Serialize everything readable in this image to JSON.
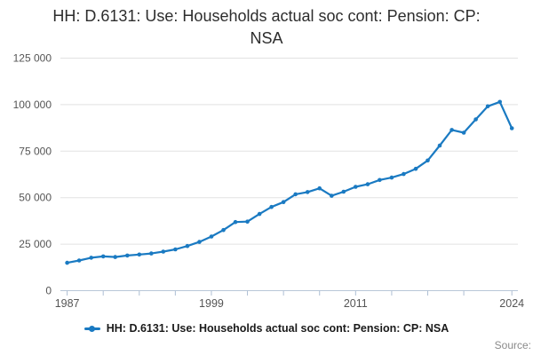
{
  "page": {
    "title": "HH: D.6131: Use: Households actual soc cont: Pension: CP: NSA",
    "source_label": "Source:"
  },
  "legend": {
    "label": "HH: D.6131: Use: Households actual soc cont: Pension: CP: NSA"
  },
  "colors": {
    "series_blue": "#1a7ac2",
    "gridline": "#e2e2e2",
    "axis_line": "#b9c7d8",
    "tick_mark": "#aebfd4",
    "tick_label": "#555555",
    "title_text": "#2d2d2d",
    "source_text": "#8a8a8a"
  },
  "chart_data": {
    "type": "line",
    "title": "HH: D.6131: Use: Households actual soc cont: Pension: CP: NSA",
    "xlabel": "",
    "ylabel": "",
    "legend_position": "bottom",
    "grid": "horizontal",
    "marker": "circle",
    "ylim": [
      0,
      125000
    ],
    "yticks": [
      0,
      25000,
      50000,
      75000,
      100000,
      125000
    ],
    "ytick_labels": [
      "0",
      "25 000",
      "50 000",
      "75 000",
      "100 000",
      "125 000"
    ],
    "xlim": [
      1987,
      2024
    ],
    "xticks": [
      1987,
      1990,
      1993,
      1996,
      1999,
      2002,
      2005,
      2008,
      2011,
      2014,
      2017,
      2020,
      2024
    ],
    "xtick_labeled": [
      1987,
      1999,
      2011,
      2024
    ],
    "x": [
      1987,
      1988,
      1989,
      1990,
      1991,
      1992,
      1993,
      1994,
      1995,
      1996,
      1997,
      1998,
      1999,
      2000,
      2001,
      2002,
      2003,
      2004,
      2005,
      2006,
      2007,
      2008,
      2009,
      2010,
      2011,
      2012,
      2013,
      2014,
      2015,
      2016,
      2017,
      2018,
      2019,
      2020,
      2021,
      2022,
      2023,
      2024
    ],
    "series": [
      {
        "name": "HH: D.6131: Use: Households actual soc cont: Pension: CP: NSA",
        "values": [
          15000,
          16200,
          17700,
          18400,
          18100,
          18900,
          19400,
          20000,
          21000,
          22200,
          24000,
          26200,
          29100,
          32600,
          36900,
          37100,
          41200,
          45000,
          47600,
          51800,
          53000,
          55000,
          51000,
          53200,
          55800,
          57200,
          59500,
          60800,
          62700,
          65500,
          70000,
          78000,
          86400,
          84900,
          92100,
          99100,
          101500,
          87300
        ]
      }
    ]
  }
}
